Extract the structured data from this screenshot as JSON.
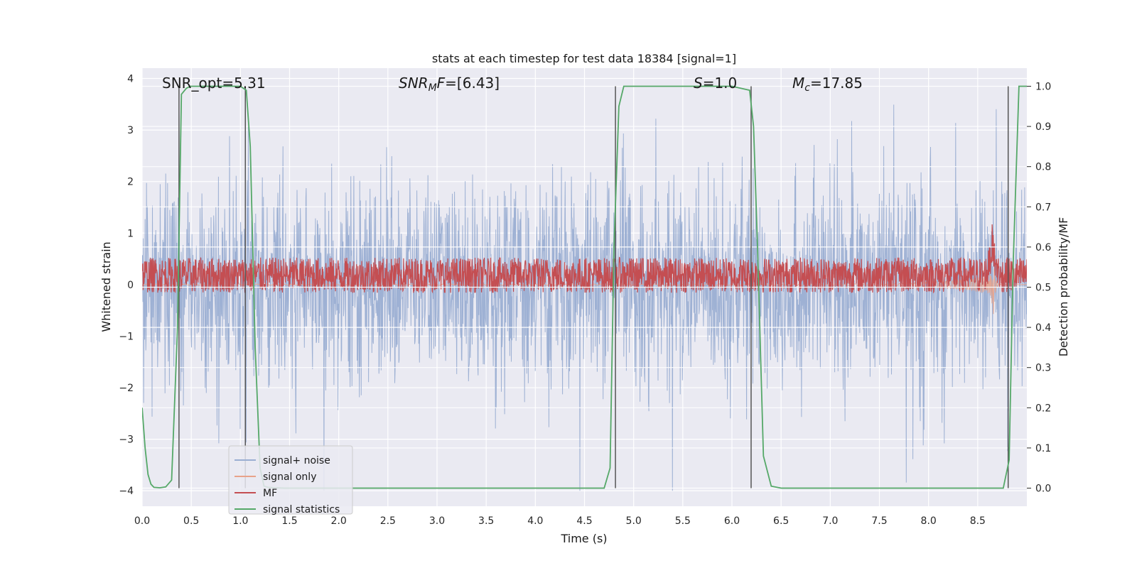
{
  "chart_data": {
    "type": "line",
    "title": "stats at each timestep for test data 18384 [signal=1]",
    "xlabel": "Time (s)",
    "ylabel": "Whitened strain",
    "ylabel_right": "Detection probability/MF",
    "xlim": [
      0.0,
      9.0
    ],
    "ylim": [
      -4.3,
      4.2
    ],
    "ylim_right": [
      -0.045,
      1.045
    ],
    "x_ticks": [
      0.0,
      0.5,
      1.0,
      1.5,
      2.0,
      2.5,
      3.0,
      3.5,
      4.0,
      4.5,
      5.0,
      5.5,
      6.0,
      6.5,
      7.0,
      7.5,
      8.0,
      8.5
    ],
    "x_tick_labels": [
      "0.0",
      "0.5",
      "1.0",
      "1.5",
      "2.0",
      "2.5",
      "3.0",
      "3.5",
      "4.0",
      "4.5",
      "5.0",
      "5.5",
      "6.0",
      "6.5",
      "7.0",
      "7.5",
      "8.0",
      "8.5"
    ],
    "y_ticks": [
      4,
      3,
      2,
      1,
      0,
      -1,
      -2,
      -3,
      -4
    ],
    "y_tick_labels": [
      "4",
      "3",
      "2",
      "1",
      "0",
      "−1",
      "−2",
      "−3",
      "−4"
    ],
    "y_ticks_right": [
      1.0,
      0.9,
      0.8,
      0.7,
      0.6,
      0.5,
      0.4,
      0.3,
      0.2,
      0.1,
      0.0
    ],
    "y_tick_labels_right": [
      "1.0",
      "0.9",
      "0.8",
      "0.7",
      "0.6",
      "0.5",
      "0.4",
      "0.3",
      "0.2",
      "0.1",
      "0.0"
    ],
    "grid": true,
    "legend_position": "lower-left",
    "annotations": {
      "snr_opt": "SNR_opt=5.31",
      "snr_mf_italic": "SNR",
      "snr_mf_sub": "M",
      "snr_mf_rest_italic": "F",
      "snr_mf_value": "=[6.43]",
      "s_italic": "S",
      "s_value": "=1.0",
      "mc_italic": "M",
      "mc_sub": "c",
      "mc_value": "=17.85"
    },
    "series": [
      {
        "name": "signal+ noise",
        "color": "#9aaed2",
        "axis": "left",
        "style": "dense noise band",
        "sigma": 0.95,
        "upper_extent_typical": 2.2,
        "lower_extent_typical": -2.4
      },
      {
        "name": "signal only",
        "color": "#e8a28a",
        "axis": "left",
        "style": "chirp growing toward merger",
        "merger_time": 8.65,
        "peak_amplitude": 1.05,
        "trough_amplitude": -0.98
      },
      {
        "name": "MF",
        "color": "#c44e52",
        "axis": "right",
        "style": "noisy band",
        "mean": 0.53,
        "band_min": 0.5,
        "band_max": 0.58,
        "peak": {
          "x": 8.65,
          "y": 0.65
        }
      },
      {
        "name": "signal statistics",
        "color": "#55a868",
        "axis": "right",
        "x": [
          0.0,
          0.03,
          0.06,
          0.09,
          0.12,
          0.18,
          0.24,
          0.3,
          0.36,
          0.4,
          0.45,
          0.49,
          0.6,
          1.0,
          1.06,
          1.1,
          1.15,
          1.2,
          1.24,
          1.28,
          1.35,
          1.45,
          2.0,
          3.0,
          4.0,
          4.7,
          4.76,
          4.8,
          4.85,
          4.9,
          5.0,
          6.0,
          6.18,
          6.22,
          6.26,
          6.32,
          6.4,
          6.5,
          7.0,
          8.0,
          8.76,
          8.82,
          8.86,
          8.92,
          9.0
        ],
        "y": [
          0.2,
          0.1,
          0.034,
          0.01,
          0.002,
          0.001,
          0.003,
          0.02,
          0.4,
          0.98,
          0.995,
          1.0,
          1.0,
          1.0,
          0.99,
          0.85,
          0.35,
          0.05,
          0.005,
          0.002,
          0.001,
          0.0,
          0.0,
          0.0,
          0.0,
          0.0,
          0.05,
          0.6,
          0.95,
          1.0,
          1.0,
          1.0,
          0.99,
          0.9,
          0.6,
          0.08,
          0.005,
          0.0,
          0.0,
          0.0,
          0.0,
          0.07,
          0.55,
          1.0,
          1.0
        ]
      }
    ],
    "vertical_markers_x": [
      0.375,
      1.05,
      4.815,
      6.195,
      8.81
    ]
  }
}
